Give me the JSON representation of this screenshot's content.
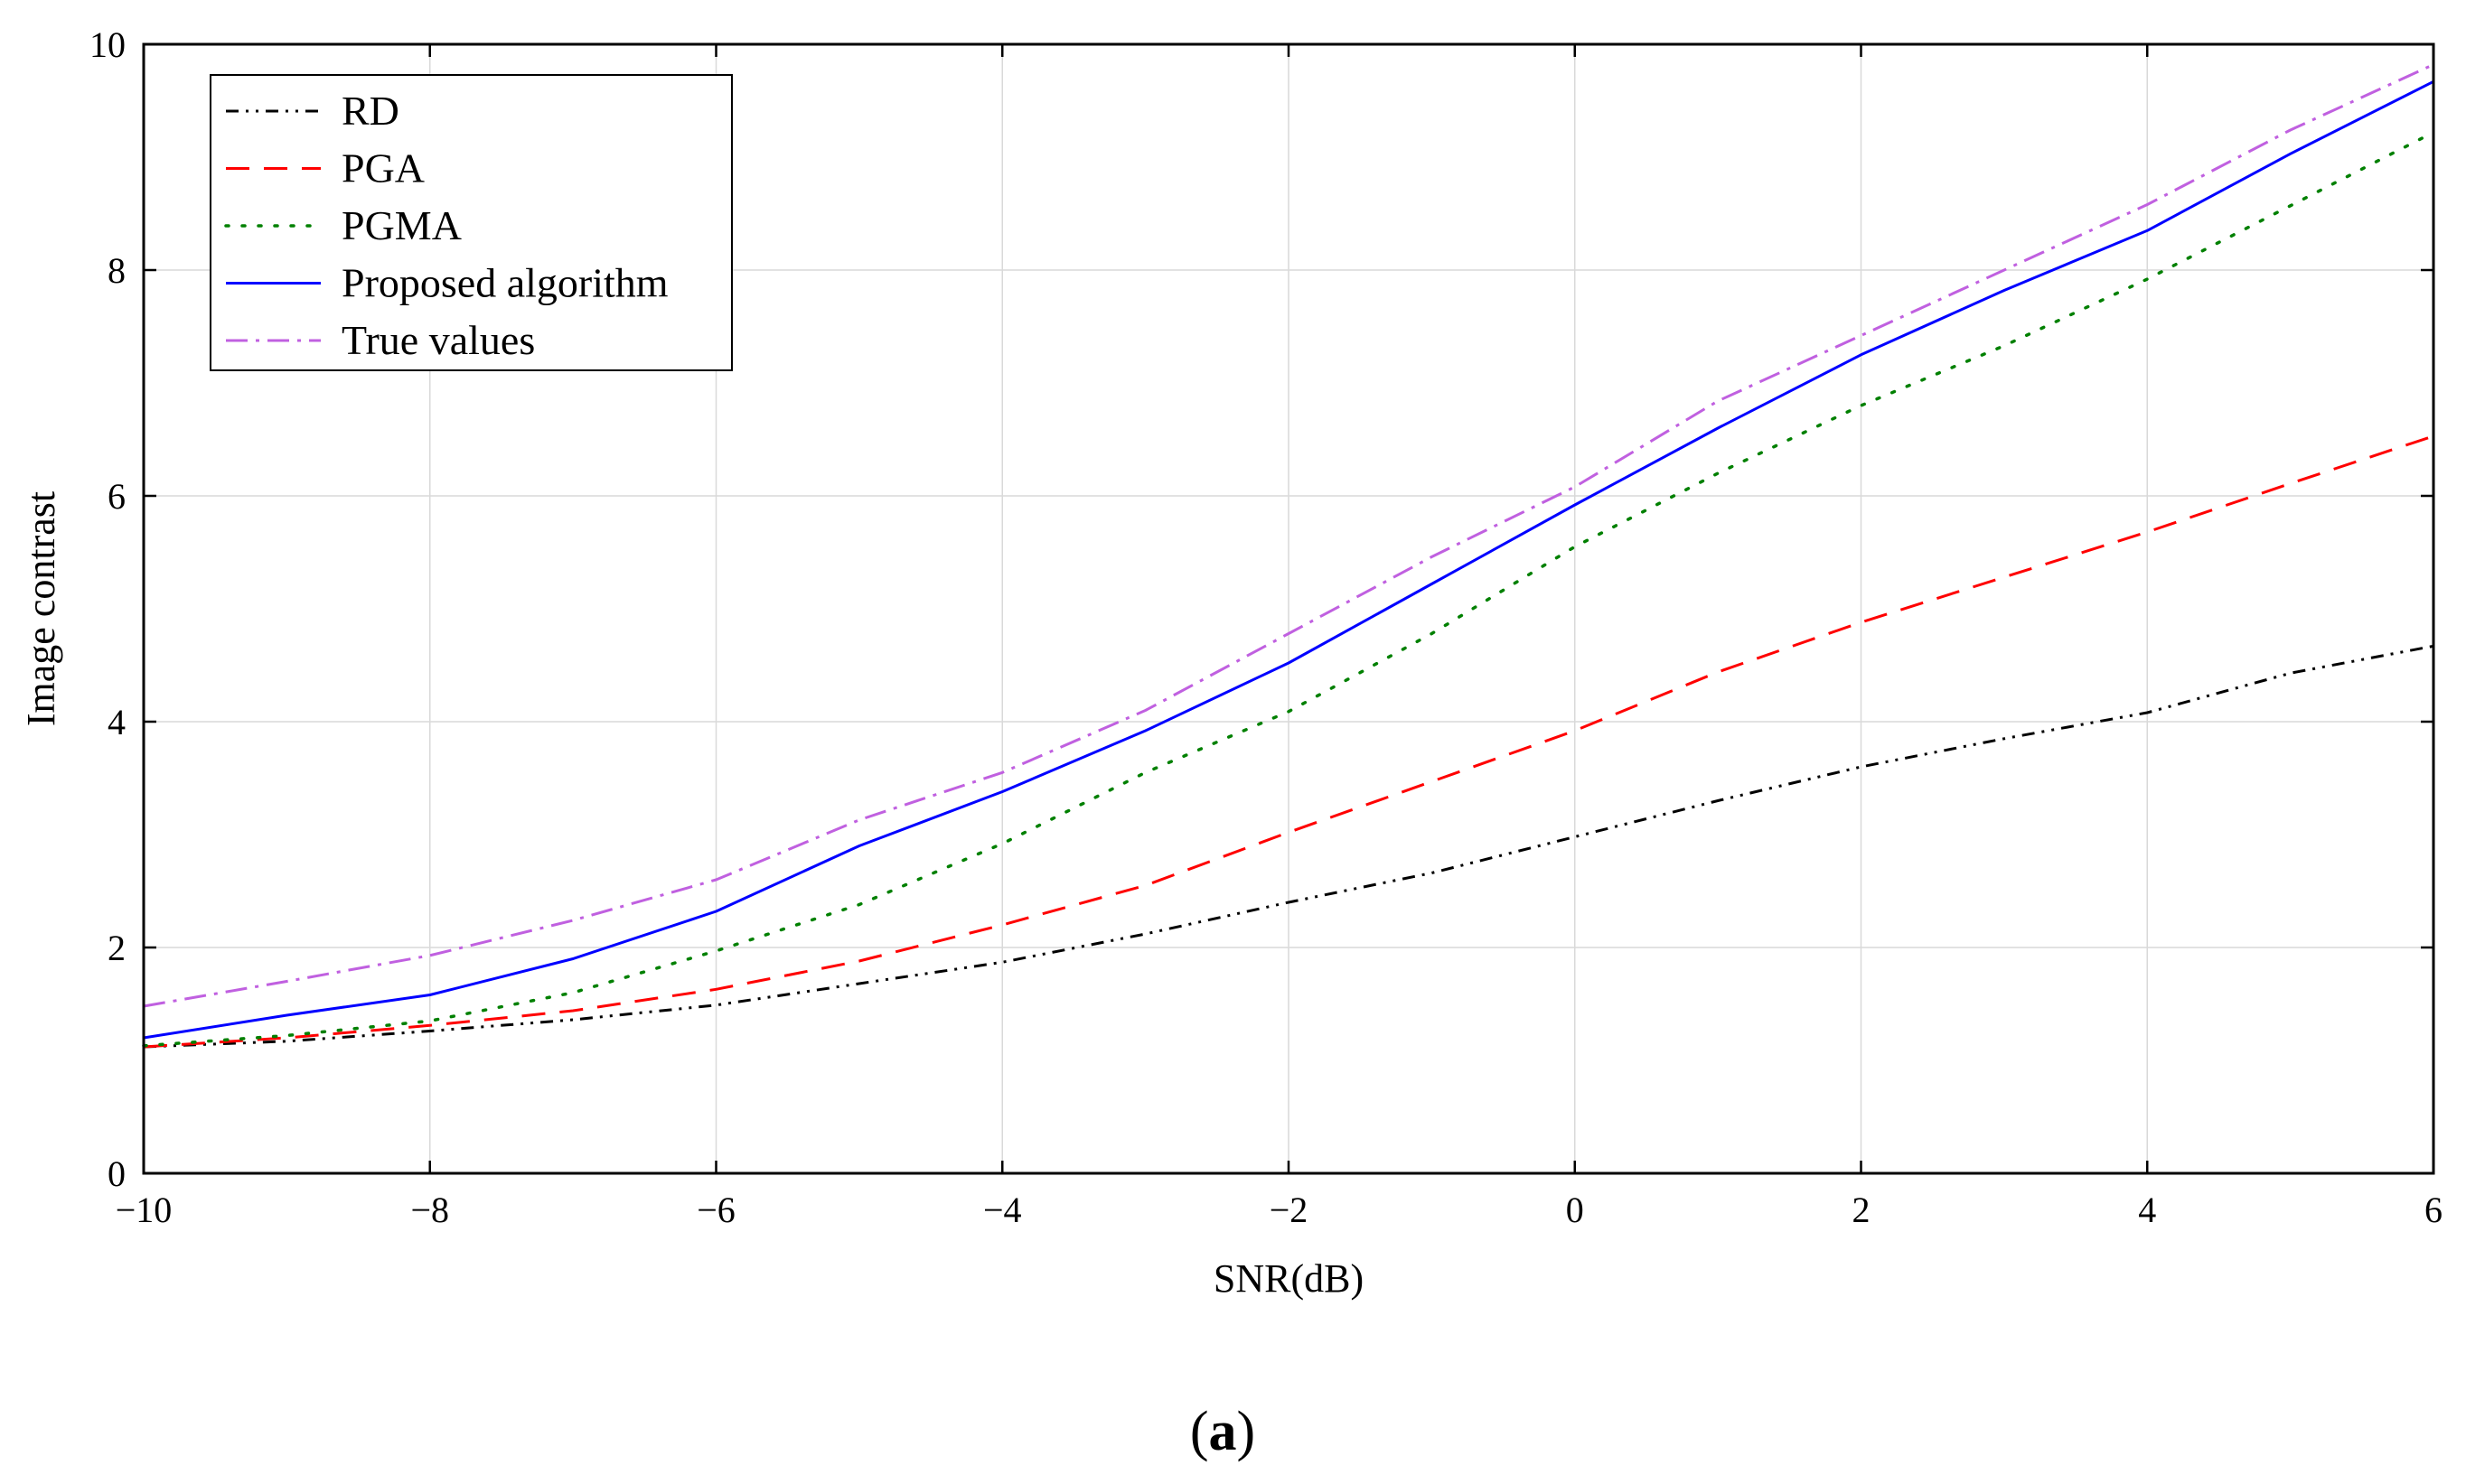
{
  "chart_data": {
    "type": "line",
    "title": "",
    "xlabel": "SNR(dB)",
    "ylabel": "Image contrast",
    "xlim": [
      -10,
      6
    ],
    "ylim": [
      0,
      10
    ],
    "xticks": [
      -10,
      -8,
      -6,
      -4,
      -2,
      0,
      2,
      4,
      6
    ],
    "xtick_labels": [
      "−10",
      "−8",
      "−6",
      "−4",
      "−2",
      "0",
      "2",
      "4",
      "6"
    ],
    "yticks": [
      0,
      2,
      4,
      6,
      8,
      10
    ],
    "ytick_labels": [
      "0",
      "2",
      "4",
      "6",
      "8",
      "10"
    ],
    "grid": true,
    "legend_position": "top-left",
    "x": [
      -10,
      -9,
      -8,
      -7,
      -6,
      -5,
      -4,
      -3,
      -2,
      -1,
      0,
      1,
      2,
      3,
      4,
      5,
      6
    ],
    "series": [
      {
        "name": "RD",
        "color": "#000000",
        "style": "dash-dot-dot",
        "values": [
          1.12,
          1.17,
          1.26,
          1.36,
          1.49,
          1.68,
          1.87,
          2.12,
          2.4,
          2.66,
          2.98,
          3.3,
          3.6,
          3.85,
          4.08,
          4.43,
          4.67
        ]
      },
      {
        "name": "PGA",
        "color": "#ff0000",
        "style": "dashed",
        "values": [
          1.12,
          1.2,
          1.31,
          1.44,
          1.63,
          1.88,
          2.2,
          2.55,
          3.02,
          3.47,
          3.92,
          4.44,
          4.88,
          5.28,
          5.68,
          6.11,
          6.53
        ]
      },
      {
        "name": "PGMA",
        "color": "#008000",
        "style": "dotted",
        "values": [
          1.13,
          1.22,
          1.35,
          1.6,
          1.97,
          2.38,
          2.92,
          3.55,
          4.09,
          4.78,
          5.55,
          6.2,
          6.8,
          7.33,
          7.92,
          8.57,
          9.22
        ]
      },
      {
        "name": "Proposed algorithm",
        "color": "#0000ff",
        "style": "solid",
        "values": [
          1.2,
          1.4,
          1.58,
          1.9,
          2.32,
          2.9,
          3.38,
          3.92,
          4.52,
          5.22,
          5.92,
          6.6,
          7.25,
          7.82,
          8.35,
          9.03,
          9.67
        ]
      },
      {
        "name": "True values",
        "color": "#c060e0",
        "style": "dash-dot",
        "values": [
          1.48,
          1.7,
          1.93,
          2.24,
          2.6,
          3.13,
          3.55,
          4.1,
          4.78,
          5.46,
          6.08,
          6.84,
          7.42,
          8.0,
          8.58,
          9.24,
          9.82
        ]
      }
    ]
  },
  "caption": {
    "open": "(",
    "letter": "a",
    "close": ")"
  }
}
